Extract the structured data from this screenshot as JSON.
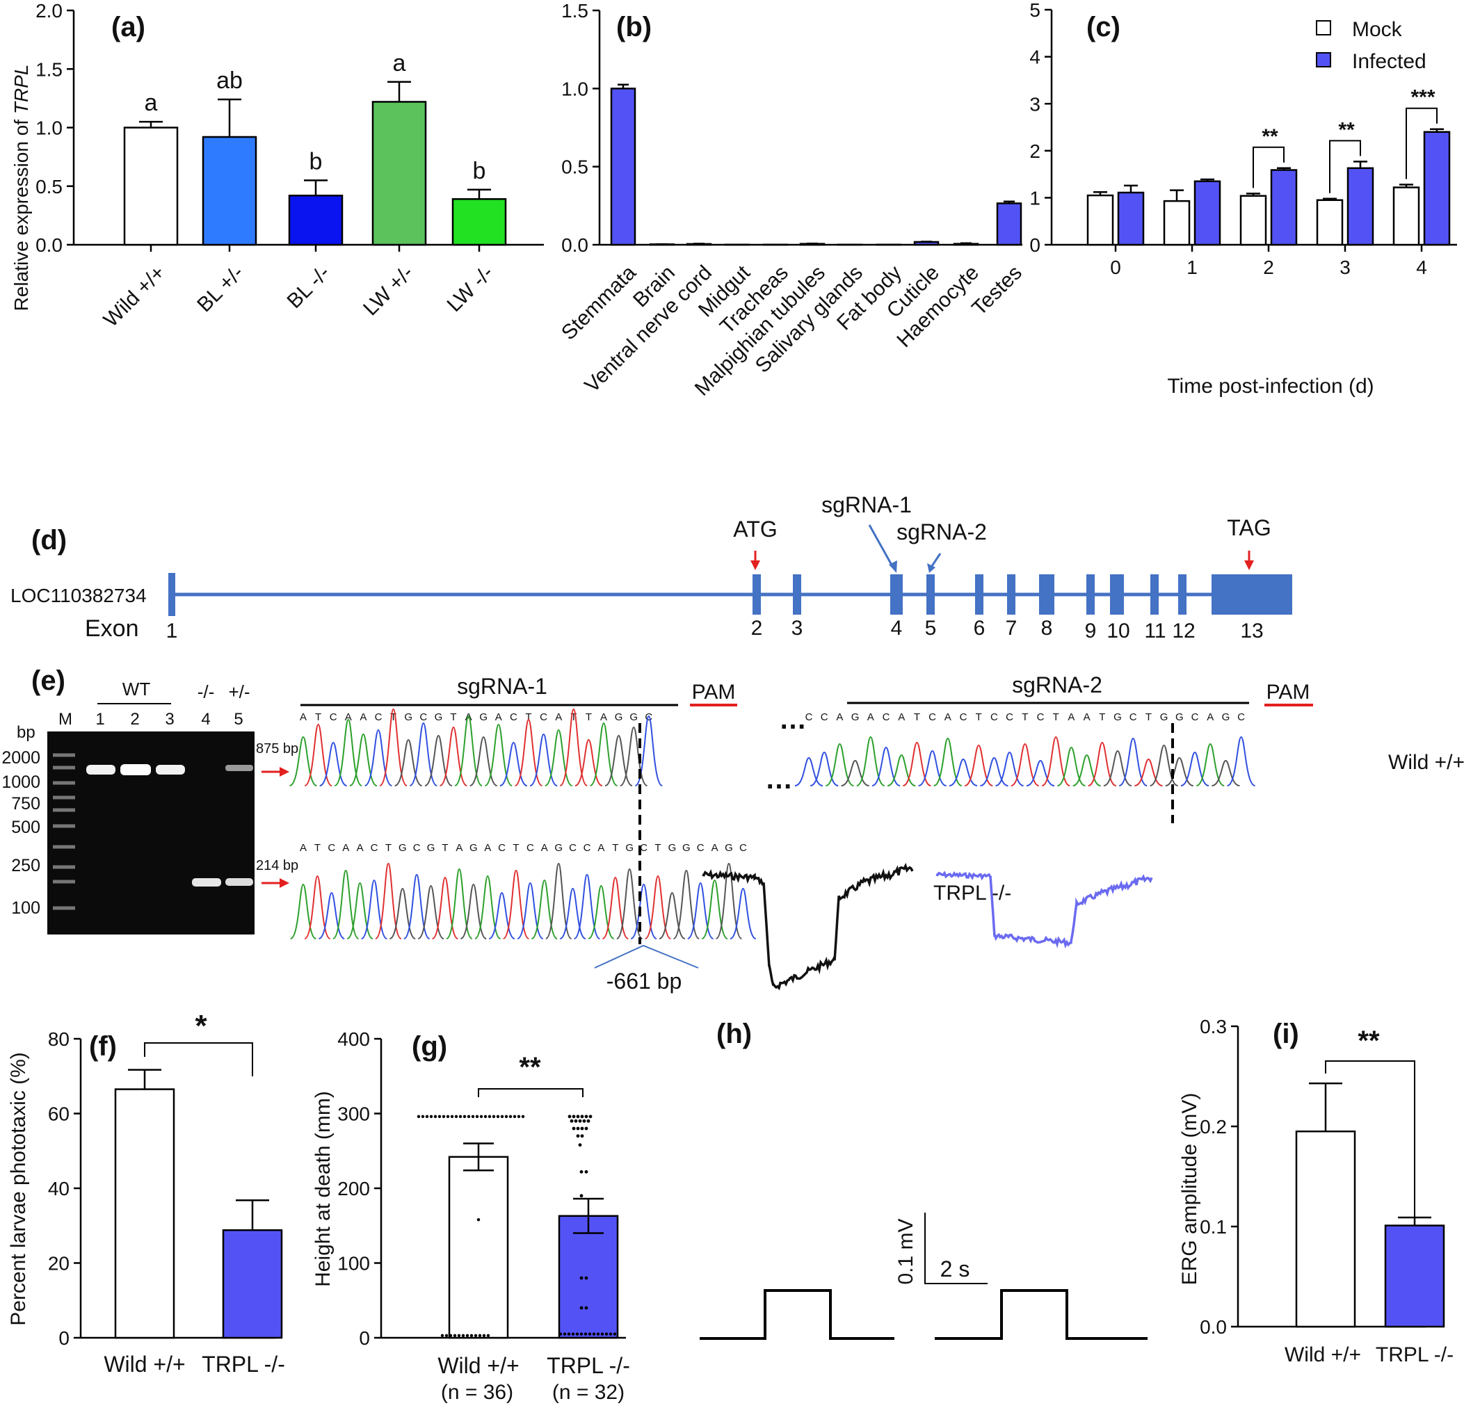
{
  "colors": {
    "mock": "#ffffff",
    "infected": "#5353f5",
    "bl_het": "#2f7bff",
    "bl_hom": "#0a14f0",
    "lw_het": "#5cc35c",
    "lw_hom": "#22e022",
    "exon": "#4472c4",
    "arrow_red": "#e32020",
    "trace_wild": "#111111",
    "trace_trpl": "#6a6af0"
  },
  "panel_a": {
    "letter": "(a)",
    "ylabel_prefix": "Relative expression of ",
    "ylabel_gene": "TRPL",
    "yticks": [
      "0.0",
      "0.5",
      "1.0",
      "1.5",
      "2.0"
    ],
    "categories": [
      "Wild +/+",
      "BL +/-",
      "BL -/-",
      "LW +/-",
      "LW -/-"
    ],
    "significance": [
      "a",
      "ab",
      "b",
      "a",
      "b"
    ]
  },
  "panel_b": {
    "letter": "(b)",
    "yticks": [
      "0.0",
      "0.5",
      "1.0",
      "1.5"
    ],
    "categories": [
      "Stemmata",
      "Brain",
      "Ventral nerve cord",
      "Midgut",
      "Tracheas",
      "Malpighian tubules",
      "Salivary glands",
      "Fat body",
      "Cuticle",
      "Haemocyte",
      "Testes"
    ]
  },
  "panel_c": {
    "letter": "(c)",
    "yticks": [
      "0",
      "1",
      "2",
      "3",
      "4",
      "5"
    ],
    "xticks": [
      "0",
      "1",
      "2",
      "3",
      "4"
    ],
    "xlabel": "Time post-infection (d)",
    "legend": [
      "Mock",
      "Infected"
    ],
    "stars": [
      "",
      "",
      "**",
      "**",
      "***"
    ]
  },
  "panel_d": {
    "letter": "(d)",
    "gene": "LOC110382734",
    "exon_label": "Exon",
    "exon_numbers": [
      "1",
      "2",
      "3",
      "4",
      "5",
      "6",
      "7",
      "8",
      "9",
      "10",
      "11",
      "12",
      "13"
    ],
    "atg": "ATG",
    "tag": "TAG",
    "sgrna1": "sgRNA-1",
    "sgrna2": "sgRNA-2"
  },
  "panel_e": {
    "letter": "(e)",
    "lane_groups": [
      "WT",
      "-/-",
      "+/-"
    ],
    "lane_marker": "M",
    "lane_numbers": [
      "1",
      "2",
      "3",
      "4",
      "5"
    ],
    "ladder_unit": "bp",
    "ladder": [
      "2000",
      "1000",
      "750",
      "500",
      "250",
      "100"
    ],
    "band_875": "875 bp",
    "band_214": "214 bp",
    "sgrna1": "sgRNA-1",
    "sgrna2": "sgRNA-2",
    "pam": "PAM",
    "seq_wild_1": "ATCAACTGCGTAGACTCATTAGGC",
    "seq_wild_2": "CCAGACATCACTCCTCTAATGCTGGCAGC",
    "seq_mut": "ATCAACTGCGTAGACTCAGCCATGCTGGCAGC",
    "ellipsis": "…",
    "wild_label": "Wild +/+",
    "mut_label": "TRPL -/-",
    "deletion": "-661 bp"
  },
  "panel_f": {
    "letter": "(f)",
    "ylabel": "Percent larvae phototaxic (%)",
    "yticks": [
      "0",
      "20",
      "40",
      "60",
      "80"
    ],
    "categories": [
      "Wild +/+",
      "TRPL -/-"
    ],
    "star": "*"
  },
  "panel_g": {
    "letter": "(g)",
    "ylabel": "Height at death (mm)",
    "yticks": [
      "0",
      "100",
      "200",
      "300",
      "400"
    ],
    "categories": [
      "Wild +/+",
      "TRPL -/-"
    ],
    "n_labels": [
      "(n = 36)",
      "(n = 32)"
    ],
    "star": "**"
  },
  "panel_h": {
    "letter": "(h)",
    "scale_v": "0.1 mV",
    "scale_t": "2 s"
  },
  "panel_i": {
    "letter": "(i)",
    "ylabel": "ERG amplitude (mV)",
    "yticks": [
      "0.0",
      "0.1",
      "0.2",
      "0.3"
    ],
    "categories": [
      "Wild +/+",
      "TRPL -/-"
    ],
    "star": "**"
  },
  "chart_data": [
    {
      "type": "bar",
      "panel": "a",
      "categories": [
        "Wild +/+",
        "BL +/-",
        "BL -/-",
        "LW +/-",
        "LW -/-"
      ],
      "values": [
        1.0,
        0.92,
        0.42,
        1.22,
        0.39
      ],
      "errors": [
        0.05,
        0.32,
        0.13,
        0.17,
        0.08
      ],
      "ylabel": "Relative expression of TRPL",
      "ylim": [
        0,
        2.0
      ]
    },
    {
      "type": "bar",
      "panel": "b",
      "categories": [
        "Stemmata",
        "Brain",
        "Ventral nerve cord",
        "Midgut",
        "Tracheas",
        "Malpighian tubules",
        "Salivary glands",
        "Fat body",
        "Cuticle",
        "Haemocyte",
        "Testes"
      ],
      "values": [
        1.0,
        0.003,
        0.005,
        0.001,
        0.001,
        0.006,
        0.001,
        0.001,
        0.018,
        0.006,
        0.265
      ],
      "errors": [
        0.025,
        0.001,
        0.002,
        0.0,
        0.0,
        0.002,
        0.0,
        0.0,
        0.002,
        0.004,
        0.012
      ],
      "ylim": [
        0,
        1.5
      ]
    },
    {
      "type": "bar",
      "panel": "c",
      "categories": [
        "0",
        "1",
        "2",
        "3",
        "4"
      ],
      "series": [
        {
          "name": "Mock",
          "values": [
            1.05,
            0.93,
            1.04,
            0.95,
            1.22
          ],
          "errors": [
            0.07,
            0.23,
            0.05,
            0.03,
            0.06
          ]
        },
        {
          "name": "Infected",
          "values": [
            1.11,
            1.35,
            1.59,
            1.63,
            2.4
          ],
          "errors": [
            0.15,
            0.04,
            0.04,
            0.14,
            0.06
          ]
        }
      ],
      "xlabel": "Time post-infection (d)",
      "ylim": [
        0,
        5
      ],
      "legend": "top-right"
    },
    {
      "type": "bar",
      "panel": "f",
      "categories": [
        "Wild +/+",
        "TRPL -/-"
      ],
      "values": [
        66.5,
        28.8
      ],
      "errors": [
        5.2,
        8.0
      ],
      "ylabel": "Percent larvae phototaxic (%)",
      "ylim": [
        0,
        80
      ]
    },
    {
      "type": "bar",
      "panel": "g",
      "categories": [
        "Wild +/+",
        "TRPL -/-"
      ],
      "values": [
        242,
        163
      ],
      "errors": [
        18,
        23
      ],
      "ylabel": "Height at death (mm)",
      "ylim": [
        0,
        400
      ]
    },
    {
      "type": "bar",
      "panel": "i",
      "categories": [
        "Wild +/+",
        "TRPL -/-"
      ],
      "values": [
        0.195,
        0.101
      ],
      "errors": [
        0.048,
        0.008
      ],
      "ylabel": "ERG amplitude (mV)",
      "ylim": [
        0,
        0.3
      ]
    }
  ]
}
